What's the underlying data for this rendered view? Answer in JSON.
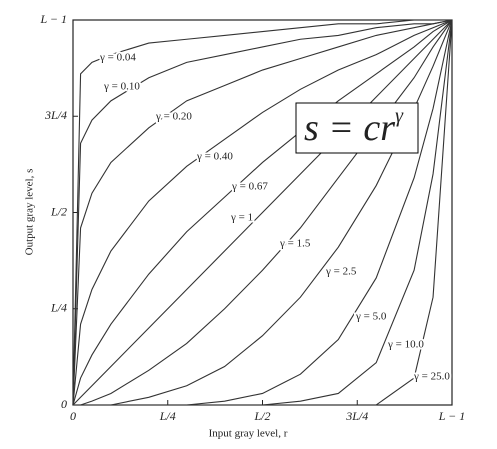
{
  "chart_data": {
    "type": "line",
    "xlabel": "Input gray level, r",
    "ylabel": "Output gray level, s",
    "formula": "s = cr",
    "formula_exponent": "γ",
    "xlim": [
      0,
      1
    ],
    "ylim": [
      0,
      1
    ],
    "xticks": [
      {
        "value": 0,
        "label": "0"
      },
      {
        "value": 0.25,
        "label": "L/4"
      },
      {
        "value": 0.5,
        "label": "L/2"
      },
      {
        "value": 0.75,
        "label": "3L/4"
      },
      {
        "value": 1,
        "label": "L − 1"
      }
    ],
    "yticks": [
      {
        "value": 0,
        "label": "0"
      },
      {
        "value": 0.25,
        "label": "L/4"
      },
      {
        "value": 0.5,
        "label": "L/2"
      },
      {
        "value": 0.75,
        "label": "3L/4"
      },
      {
        "value": 1,
        "label": "L − 1"
      }
    ],
    "x": [
      0,
      0.02,
      0.05,
      0.1,
      0.2,
      0.3,
      0.4,
      0.5,
      0.6,
      0.7,
      0.8,
      0.9,
      0.95,
      1
    ],
    "series": [
      {
        "name": "γ = 0.04",
        "color": "#333",
        "values": [
          0,
          0.86,
          0.89,
          0.91,
          0.94,
          0.95,
          0.96,
          0.97,
          0.98,
          0.99,
          0.99,
          1,
          1,
          1
        ]
      },
      {
        "name": "γ = 0.10",
        "color": "#333",
        "values": [
          0,
          0.68,
          0.74,
          0.79,
          0.85,
          0.89,
          0.91,
          0.93,
          0.95,
          0.96,
          0.98,
          0.99,
          0.99,
          1
        ]
      },
      {
        "name": "γ = 0.20",
        "color": "#333",
        "values": [
          0,
          0.46,
          0.55,
          0.63,
          0.72,
          0.79,
          0.83,
          0.87,
          0.9,
          0.93,
          0.96,
          0.98,
          0.99,
          1
        ]
      },
      {
        "name": "γ = 0.40",
        "color": "#333",
        "values": [
          0,
          0.21,
          0.3,
          0.4,
          0.53,
          0.62,
          0.69,
          0.76,
          0.82,
          0.87,
          0.91,
          0.96,
          0.98,
          1
        ]
      },
      {
        "name": "γ = 0.67",
        "color": "#333",
        "values": [
          0,
          0.07,
          0.13,
          0.21,
          0.34,
          0.45,
          0.54,
          0.63,
          0.71,
          0.79,
          0.86,
          0.93,
          0.97,
          1
        ]
      },
      {
        "name": "γ = 1",
        "color": "#333",
        "values": [
          0,
          0.02,
          0.05,
          0.1,
          0.2,
          0.3,
          0.4,
          0.5,
          0.6,
          0.7,
          0.8,
          0.9,
          0.95,
          1
        ]
      },
      {
        "name": "γ = 1.5",
        "color": "#333",
        "values": [
          0,
          0,
          0.01,
          0.03,
          0.09,
          0.16,
          0.25,
          0.35,
          0.46,
          0.59,
          0.72,
          0.85,
          0.93,
          1
        ]
      },
      {
        "name": "γ = 2.5",
        "color": "#333",
        "values": [
          0,
          0,
          0,
          0,
          0.02,
          0.05,
          0.1,
          0.18,
          0.28,
          0.41,
          0.57,
          0.77,
          0.88,
          1
        ]
      },
      {
        "name": "γ = 5.0",
        "color": "#333",
        "values": [
          0,
          0,
          0,
          0,
          0,
          0,
          0.01,
          0.03,
          0.08,
          0.17,
          0.33,
          0.59,
          0.77,
          1
        ]
      },
      {
        "name": "γ = 10.0",
        "color": "#333",
        "values": [
          0,
          0,
          0,
          0,
          0,
          0,
          0,
          0,
          0.01,
          0.03,
          0.11,
          0.35,
          0.6,
          1
        ]
      },
      {
        "name": "γ = 25.0",
        "color": "#333",
        "values": [
          0,
          0,
          0,
          0,
          0,
          0,
          0,
          0,
          0,
          0,
          0,
          0.07,
          0.28,
          1
        ]
      }
    ]
  }
}
